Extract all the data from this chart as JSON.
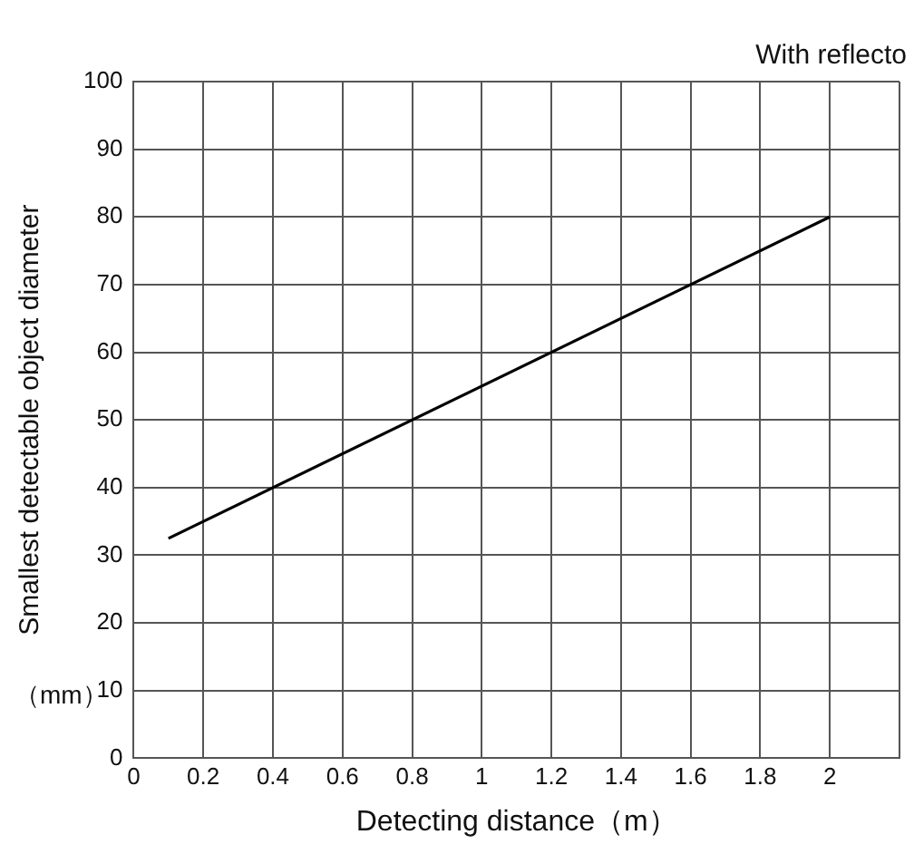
{
  "chart_data": {
    "type": "line",
    "subtitle": "With reflecto",
    "xlabel": "Detecting distance（m）",
    "ylabel": "Smallest detectable object diameter",
    "annotations": [
      "（mm）"
    ],
    "series": [
      {
        "color": "#000000",
        "x": [
          0.1,
          2
        ],
        "values": [
          32.5,
          80
        ]
      }
    ],
    "xlim": [
      0,
      2.2
    ],
    "xticks": [
      0,
      0.2,
      0.4,
      0.6,
      0.8,
      1,
      1.2,
      1.4,
      1.6,
      1.8,
      2,
      {
        "value": 2.2,
        "label": null
      }
    ],
    "ylim": [
      0,
      100
    ],
    "yticks": [
      0,
      10,
      20,
      30,
      40,
      50,
      60,
      70,
      80,
      90,
      100
    ],
    "grid": true,
    "legend": false,
    "marker": "none",
    "line_style": "solid"
  }
}
